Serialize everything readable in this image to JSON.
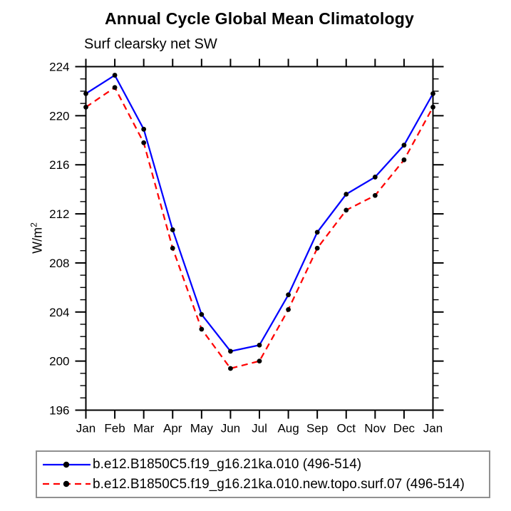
{
  "title": "Annual Cycle Global Mean Climatology",
  "subtitle": "Surf clearsky net SW",
  "ylabel": {
    "base": "W/m",
    "exp": "2"
  },
  "legend": {
    "marker_color": "#000000",
    "entries": [
      {
        "label": "b.e12.B1850C5.f19_g16.21ka.010 (496-514)",
        "color": "#0000ff",
        "style": "solid"
      },
      {
        "label": "b.e12.B1850C5.f19_g16.21ka.010.new.topo.surf.07 (496-514)",
        "color": "#ff0000",
        "style": "dashed"
      }
    ]
  },
  "chart_data": {
    "type": "line",
    "title": "Annual Cycle Global Mean Climatology",
    "subtitle": "Surf clearsky net SW",
    "ylabel": "W/m²",
    "xlabel": "",
    "categories": [
      "Jan",
      "Feb",
      "Mar",
      "Apr",
      "May",
      "Jun",
      "Jul",
      "Aug",
      "Sep",
      "Oct",
      "Nov",
      "Dec",
      "Jan"
    ],
    "series": [
      {
        "name": "b.e12.B1850C5.f19_g16.21ka.010 (496-514)",
        "color": "#0000ff",
        "line_style": "solid",
        "marker": "circle",
        "marker_color": "#000000",
        "values": [
          221.8,
          223.3,
          218.9,
          210.7,
          203.8,
          200.8,
          201.3,
          205.4,
          210.5,
          213.6,
          215.0,
          217.6,
          221.8
        ]
      },
      {
        "name": "b.e12.B1850C5.f19_g16.21ka.010.new.topo.surf.07 (496-514)",
        "color": "#ff0000",
        "line_style": "dashed",
        "marker": "circle",
        "marker_color": "#000000",
        "values": [
          220.7,
          222.3,
          217.8,
          209.2,
          202.6,
          199.4,
          200.0,
          204.2,
          209.2,
          212.3,
          213.5,
          216.4,
          220.7
        ]
      }
    ],
    "ylim": [
      196,
      224
    ],
    "ytick_major": 4,
    "ytick_minor": 1,
    "grid": false,
    "axis_color": "#000000",
    "legend_position": "bottom"
  }
}
